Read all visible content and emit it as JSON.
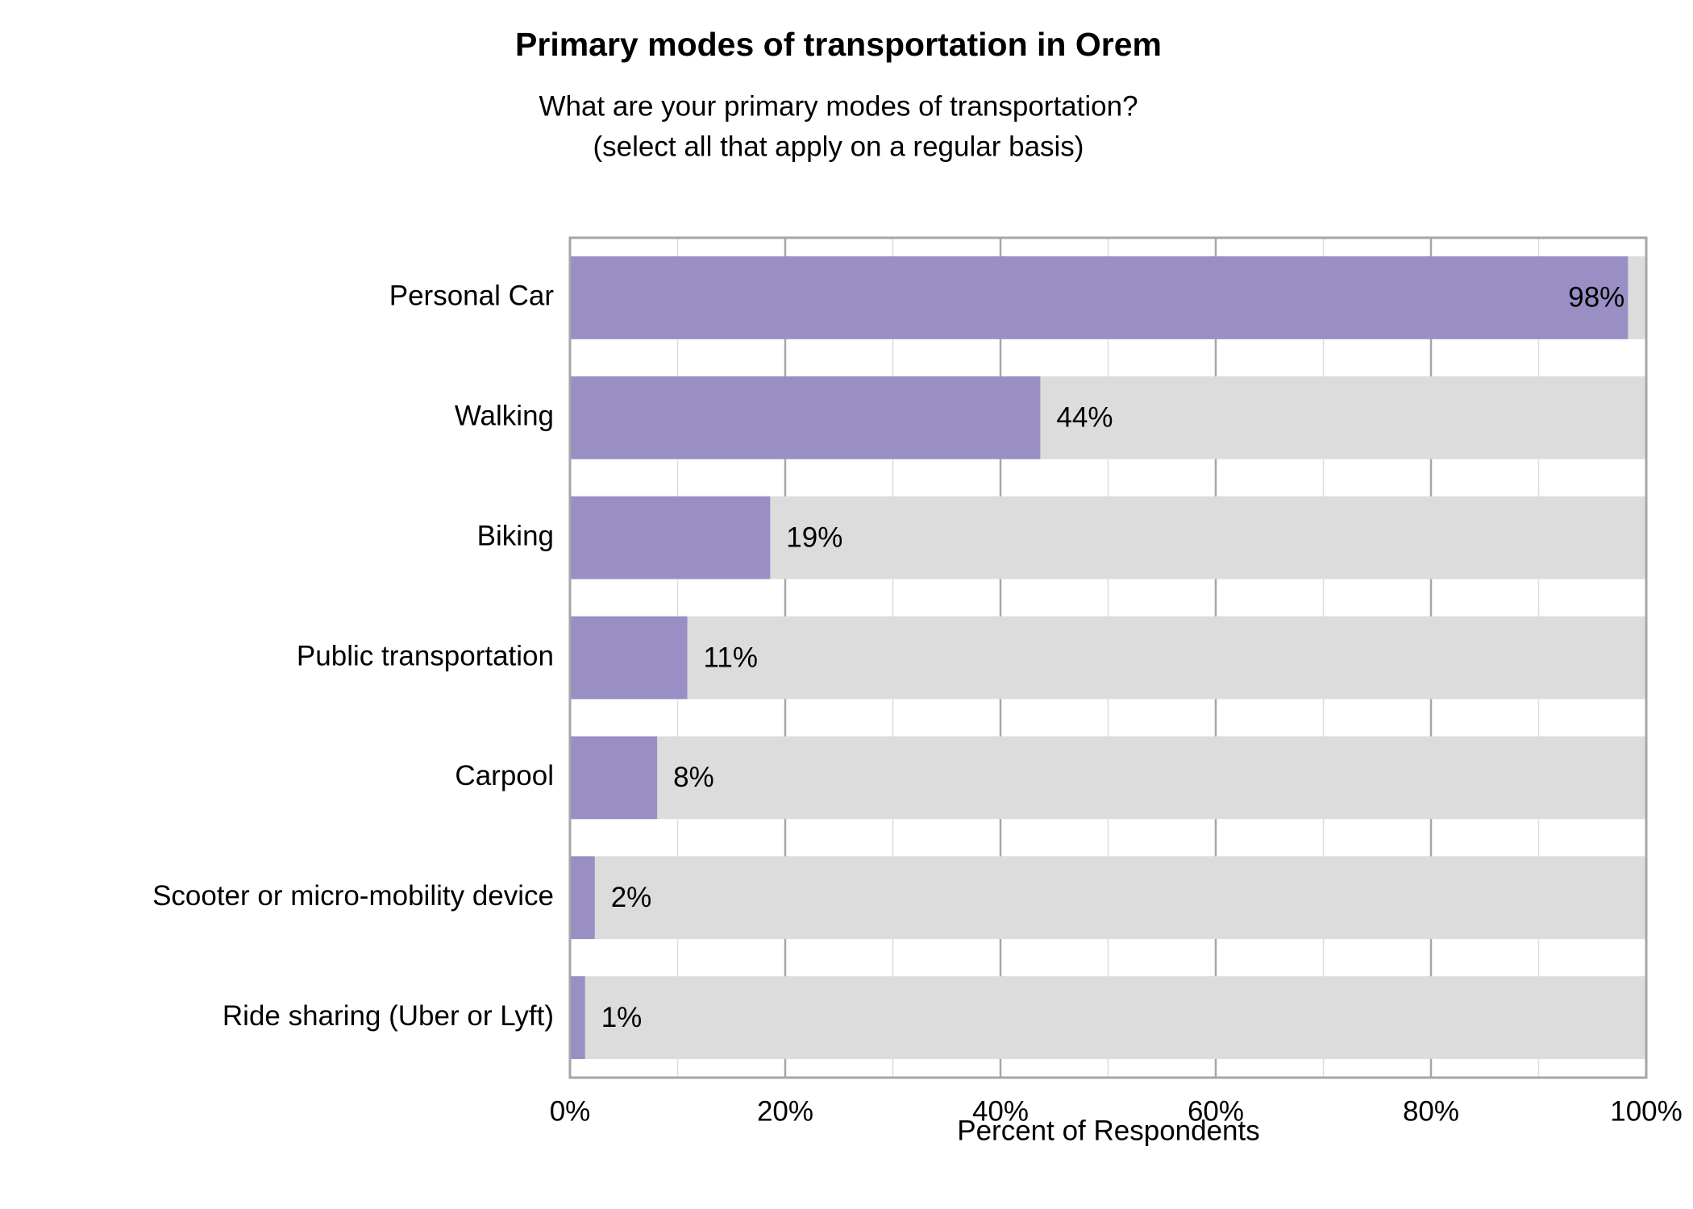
{
  "chart_data": {
    "type": "barh",
    "title": "Primary modes of transportation in Orem",
    "subtitle": [
      "What are your primary modes of transportation?",
      "(select all that apply on a regular basis)"
    ],
    "x_label": "Percent of Respondents",
    "categories": [
      "Personal Car",
      "Walking",
      "Biking",
      "Public transportation",
      "Carpool",
      "Scooter or micro-mobility device",
      "Ride sharing (Uber or Lyft)"
    ],
    "values": [
      98.3,
      43.7,
      18.6,
      10.9,
      8.1,
      2.3,
      1.4
    ],
    "value_labels": [
      "98%",
      "44%",
      "19%",
      "11%",
      "8%",
      "2%",
      "1%"
    ],
    "color": "#998fc4",
    "track_color": "#dcdcdc",
    "xlim": [
      0,
      100
    ],
    "xticks": [
      {
        "value": 0,
        "label": "0%"
      },
      {
        "value": 20,
        "label": "20%"
      },
      {
        "value": 40,
        "label": "40%"
      },
      {
        "value": 60,
        "label": "60%"
      },
      {
        "value": 80,
        "label": "80%"
      },
      {
        "value": 100,
        "label": "100%"
      }
    ],
    "minor_xticks": [
      10,
      30,
      50,
      70,
      90
    ],
    "grid": true
  }
}
